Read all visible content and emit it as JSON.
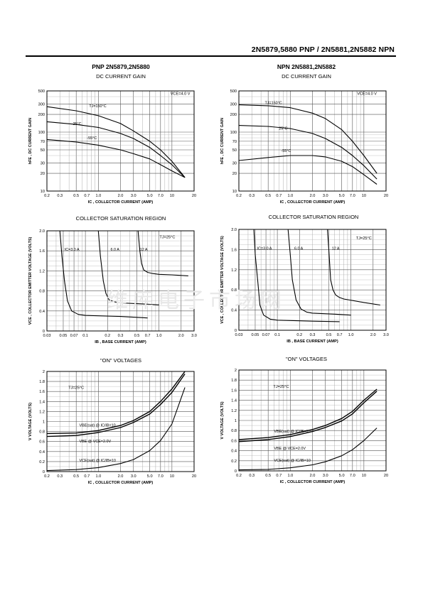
{
  "header": {
    "title": "2N5879,5880 PNP / 2N5881,2N5882 NPN"
  },
  "columns": [
    {
      "title": "PNP 2N5879,2N5880"
    },
    {
      "title": "NPN 2N5881,2N5882"
    }
  ],
  "watermark": "维库电子市场网",
  "chart_data": [
    {
      "id": "pnp-gain",
      "type": "line",
      "title": "DC CURRENT GAIN",
      "xlabel": "IC , COLLECTOR CURRENT (AMP)",
      "ylabel": "hFE , DC CURRENT GAIN",
      "x_scale": "log",
      "y_scale": "log",
      "xlim": [
        0.2,
        20
      ],
      "ylim": [
        10,
        500
      ],
      "x_ticks": [
        0.2,
        0.3,
        0.5,
        0.7,
        1.0,
        2.0,
        3.0,
        5.0,
        7.0,
        10,
        20
      ],
      "x_tick_labels": [
        "0.2",
        "0.3",
        "0.5",
        "0.7",
        "1.0",
        "2.0",
        "3.0",
        "5.0",
        "7.0",
        "10",
        "20"
      ],
      "y_ticks": [
        10,
        20,
        30,
        50,
        70,
        100,
        200,
        300,
        500
      ],
      "y_tick_labels": [
        "10",
        "20",
        "30",
        "50",
        "70",
        "100",
        "200",
        "300",
        "500"
      ],
      "condition": "VCE=4.0 V",
      "series": [
        {
          "name": "TJ=150°C",
          "x": [
            0.2,
            0.5,
            1.0,
            2.0,
            3.0,
            5.0,
            7.0,
            10,
            15
          ],
          "y": [
            270,
            230,
            190,
            140,
            105,
            70,
            50,
            32,
            17
          ]
        },
        {
          "name": "25°C",
          "x": [
            0.2,
            0.5,
            1.0,
            2.0,
            3.0,
            5.0,
            7.0,
            10,
            15
          ],
          "y": [
            150,
            135,
            120,
            95,
            78,
            55,
            40,
            28,
            17
          ]
        },
        {
          "name": "-55°C",
          "x": [
            0.2,
            0.5,
            1.0,
            2.0,
            3.0,
            5.0,
            7.0,
            10,
            15
          ],
          "y": [
            75,
            68,
            60,
            50,
            43,
            35,
            28,
            22,
            17
          ]
        }
      ]
    },
    {
      "id": "npn-gain",
      "type": "line",
      "title": "DC CURRENT GAIN",
      "xlabel": "IC , COLLECTOR CURRENT (AMP)",
      "ylabel": "hFE , DC CURRENT GAIN",
      "x_scale": "log",
      "y_scale": "log",
      "xlim": [
        0.2,
        20
      ],
      "ylim": [
        10,
        500
      ],
      "x_ticks": [
        0.2,
        0.3,
        0.5,
        0.7,
        1.0,
        2.0,
        3.0,
        5.0,
        7.0,
        10,
        20
      ],
      "x_tick_labels": [
        "0.2",
        "0.3",
        "0.5",
        "0.7",
        "1.0",
        "2.0",
        "3.0",
        "5.0",
        "7.0",
        "10",
        "20"
      ],
      "y_ticks": [
        10,
        20,
        30,
        50,
        70,
        100,
        200,
        300,
        500
      ],
      "y_tick_labels": [
        "10",
        "20",
        "30",
        "50",
        "70",
        "100",
        "200",
        "300",
        "500"
      ],
      "condition": "VCE=4.0 V",
      "series": [
        {
          "name": "TJ=150°C",
          "x": [
            0.2,
            0.5,
            1.0,
            2.0,
            3.0,
            5.0,
            7.0,
            10,
            15
          ],
          "y": [
            290,
            280,
            260,
            210,
            170,
            110,
            70,
            40,
            20
          ]
        },
        {
          "name": "25°C",
          "x": [
            0.2,
            0.5,
            1.0,
            2.0,
            3.0,
            5.0,
            7.0,
            10,
            15
          ],
          "y": [
            130,
            125,
            115,
            95,
            78,
            55,
            40,
            27,
            16
          ]
        },
        {
          "name": "-55°C",
          "x": [
            0.2,
            0.5,
            1.0,
            2.0,
            3.0,
            5.0,
            7.0,
            10,
            15
          ],
          "y": [
            33,
            37,
            40,
            40,
            38,
            32,
            26,
            19,
            13
          ]
        }
      ]
    },
    {
      "id": "pnp-sat",
      "type": "line",
      "title": "COLLECTOR SATURATION REGION",
      "xlabel": "IB , BASE CURRENT (AMP)",
      "ylabel": "VCE , COLLECTOR EMITTER VOLTAGE (VOLTS)",
      "x_scale": "log",
      "y_scale": "linear",
      "xlim": [
        0.03,
        3.0
      ],
      "ylim": [
        0,
        2.0
      ],
      "x_ticks": [
        0.03,
        0.05,
        0.07,
        0.1,
        0.2,
        0.3,
        0.5,
        0.7,
        1.0,
        2.0,
        3.0
      ],
      "x_tick_labels": [
        "0.03",
        "0.05",
        "0.07",
        "0.1",
        "0.2",
        "0.3",
        "0.5",
        "0.7",
        "1.0",
        "2.0",
        "3.0"
      ],
      "y_ticks": [
        0,
        0.4,
        0.8,
        1.2,
        1.6,
        2.0
      ],
      "y_tick_labels": [
        "0",
        "0.4",
        "0.8",
        "1.2",
        "1.6",
        "2.0"
      ],
      "condition": "TJ=25°C",
      "series": [
        {
          "name": "IC=3.0 A",
          "x": [
            0.045,
            0.048,
            0.052,
            0.057,
            0.065,
            0.08,
            0.1,
            0.3,
            0.7
          ],
          "y": [
            2.0,
            1.5,
            1.0,
            0.6,
            0.4,
            0.33,
            0.31,
            0.29,
            0.26
          ]
        },
        {
          "name": "6.0 A",
          "x": [
            0.15,
            0.16,
            0.175,
            0.19,
            0.21,
            0.25,
            0.3,
            0.6,
            1.0
          ],
          "y": [
            2.0,
            1.5,
            1.0,
            0.75,
            0.62,
            0.58,
            0.56,
            0.54,
            0.52
          ]
        },
        {
          "name": "12 A",
          "x": [
            0.52,
            0.55,
            0.58,
            0.62,
            0.7,
            0.8,
            1.0,
            1.5,
            2.5
          ],
          "y": [
            2.0,
            1.6,
            1.35,
            1.22,
            1.17,
            1.15,
            1.13,
            1.12,
            1.1
          ]
        }
      ]
    },
    {
      "id": "npn-sat",
      "type": "line",
      "title": "COLLECTOR SATURATION REGION",
      "xlabel": "IB , BASE CURRENT (AMP)",
      "ylabel": "VCE , COLLECTOR EMITTER VOLTAGE (VOLTS)",
      "x_scale": "log",
      "y_scale": "linear",
      "xlim": [
        0.03,
        3.0
      ],
      "ylim": [
        0,
        2.0
      ],
      "x_ticks": [
        0.03,
        0.05,
        0.07,
        0.1,
        0.2,
        0.3,
        0.5,
        0.7,
        1.0,
        2.0,
        3.0
      ],
      "x_tick_labels": [
        "0.03",
        "0.05",
        "0.07",
        "0.1",
        "0.2",
        "0.3",
        "0.5",
        "0.7",
        "1.0",
        "2.0",
        "3.0"
      ],
      "y_ticks": [
        0,
        0.4,
        0.8,
        1.2,
        1.6,
        2.0
      ],
      "y_tick_labels": [
        "0",
        "0.4",
        "0.8",
        "1.2",
        "1.6",
        "2.0"
      ],
      "condition": "TJ=25°C",
      "series": [
        {
          "name": "IC=3.0 A",
          "x": [
            0.048,
            0.05,
            0.054,
            0.058,
            0.065,
            0.08,
            0.1,
            0.3,
            0.7
          ],
          "y": [
            2.0,
            1.5,
            1.0,
            0.5,
            0.3,
            0.22,
            0.2,
            0.18,
            0.17
          ]
        },
        {
          "name": "6.0 A",
          "x": [
            0.14,
            0.15,
            0.16,
            0.18,
            0.21,
            0.25,
            0.3,
            0.6,
            1.0
          ],
          "y": [
            2.0,
            1.5,
            1.0,
            0.6,
            0.42,
            0.36,
            0.34,
            0.32,
            0.3
          ]
        },
        {
          "name": "12 A",
          "x": [
            0.48,
            0.5,
            0.53,
            0.57,
            0.62,
            0.7,
            0.8,
            1.5,
            2.5
          ],
          "y": [
            2.0,
            1.6,
            1.0,
            0.8,
            0.7,
            0.65,
            0.62,
            0.55,
            0.5
          ]
        }
      ]
    },
    {
      "id": "pnp-on",
      "type": "line",
      "title": "\"ON\" VOLTAGES",
      "xlabel": "IC , COLLECTOR CURRENT (AMP)",
      "ylabel": "V VOLTAGE (VOLTS)",
      "x_scale": "log",
      "y_scale": "linear",
      "xlim": [
        0.2,
        20
      ],
      "ylim": [
        0,
        2.0
      ],
      "x_ticks": [
        0.2,
        0.3,
        0.5,
        0.7,
        1.0,
        2.0,
        3.0,
        5.0,
        7.0,
        10,
        20
      ],
      "x_tick_labels": [
        "0.2",
        "0.3",
        "0.5",
        "0.7",
        "1.0",
        "2.0",
        "3.0",
        "5.0",
        "7.0",
        "10",
        "20"
      ],
      "y_ticks": [
        0,
        0.2,
        0.4,
        0.6,
        0.8,
        1.0,
        1.2,
        1.4,
        1.6,
        1.8,
        2.0
      ],
      "y_tick_labels": [
        "0",
        "0.2",
        "0.4",
        "0.6",
        "0.8",
        "1",
        "1.2",
        "1.4",
        "1.6",
        "1.8",
        "2"
      ],
      "condition": "TJ=25°C",
      "series": [
        {
          "name": "VBE(sat) @ IC/IB=10",
          "x": [
            0.2,
            0.5,
            1.0,
            2.0,
            3.0,
            5.0,
            7.0,
            10,
            15
          ],
          "y": [
            0.76,
            0.77,
            0.82,
            0.92,
            1.02,
            1.2,
            1.4,
            1.65,
            2.0
          ]
        },
        {
          "name": "VBE @ VCE=2.0V",
          "x": [
            0.2,
            0.5,
            1.0,
            2.0,
            3.0,
            5.0,
            7.0,
            10,
            15
          ],
          "y": [
            0.7,
            0.72,
            0.78,
            0.88,
            0.98,
            1.15,
            1.34,
            1.58,
            1.95
          ]
        },
        {
          "name": "VCE(sat) @ IC/IB=10",
          "x": [
            0.2,
            0.5,
            1.0,
            2.0,
            3.0,
            5.0,
            7.0,
            10,
            15
          ],
          "y": [
            0.02,
            0.04,
            0.08,
            0.16,
            0.24,
            0.42,
            0.62,
            0.95,
            1.68
          ]
        }
      ]
    },
    {
      "id": "npn-on",
      "type": "line",
      "title": "\"ON\" VOLTAGES",
      "xlabel": "IC , COLLECTOR CURRENT (AMP)",
      "ylabel": "V VOLTAGE (VOLTS)",
      "x_scale": "log",
      "y_scale": "linear",
      "xlim": [
        0.2,
        20
      ],
      "ylim": [
        0,
        2.0
      ],
      "x_ticks": [
        0.2,
        0.3,
        0.5,
        0.7,
        1.0,
        2.0,
        3.0,
        5.0,
        7.0,
        10,
        20
      ],
      "x_tick_labels": [
        "0.2",
        "0.3",
        "0.5",
        "0.7",
        "1.0",
        "2.0",
        "3.0",
        "5.0",
        "7.0",
        "10",
        "20"
      ],
      "y_ticks": [
        0,
        0.2,
        0.4,
        0.6,
        0.8,
        1.0,
        1.2,
        1.4,
        1.6,
        1.8,
        2.0
      ],
      "y_tick_labels": [
        "0",
        "0.2",
        "0.4",
        "0.6",
        "0.8",
        "1",
        "1.2",
        "1.4",
        "1.6",
        "1.8",
        "2"
      ],
      "condition": "TJ=25°C",
      "series": [
        {
          "name": "VBE(sat) @ IC/IB=10",
          "x": [
            0.2,
            0.5,
            1.0,
            2.0,
            3.0,
            5.0,
            7.0,
            10,
            15
          ],
          "y": [
            0.62,
            0.66,
            0.72,
            0.82,
            0.9,
            1.04,
            1.18,
            1.4,
            1.62
          ]
        },
        {
          "name": "VBE @ VCE=2.0V",
          "x": [
            0.2,
            0.5,
            1.0,
            2.0,
            3.0,
            5.0,
            7.0,
            10,
            15
          ],
          "y": [
            0.58,
            0.62,
            0.68,
            0.78,
            0.86,
            0.99,
            1.13,
            1.35,
            1.58
          ]
        },
        {
          "name": "VCE(sat) @ IC/IB=10",
          "x": [
            0.2,
            0.5,
            1.0,
            2.0,
            3.0,
            5.0,
            7.0,
            10,
            15
          ],
          "y": [
            0.02,
            0.03,
            0.06,
            0.12,
            0.18,
            0.3,
            0.42,
            0.6,
            0.85
          ]
        }
      ]
    }
  ]
}
